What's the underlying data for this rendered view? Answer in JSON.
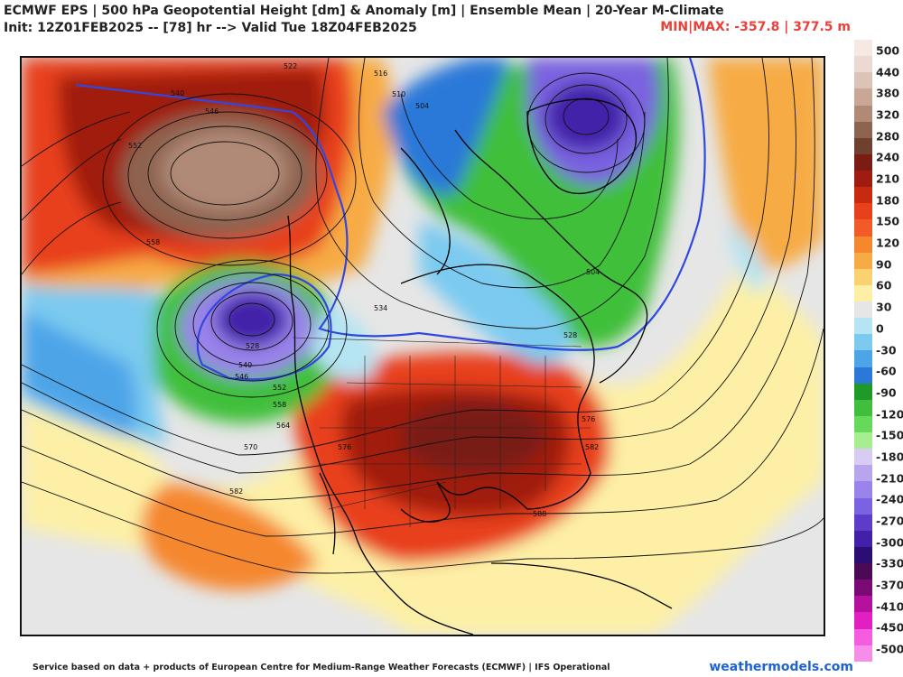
{
  "header": {
    "title_line1": "ECMWF EPS | 500 hPa Geopotential Height [dm] & Anomaly [m] | Ensemble Mean | 20-Year M-Climate",
    "title_line2": "Init: 12Z01FEB2025 -- [78] hr --> Valid Tue 18Z04FEB2025",
    "minmax": "MIN|MAX: -357.8 | 377.5 m"
  },
  "footer": {
    "credit": "Service based on data + products of European Centre for Medium-Range Weather Forecasts (ECMWF) | IFS Operational",
    "brand": "weathermodels.com"
  },
  "legend": {
    "tick_labels": [
      "500",
      "440",
      "380",
      "320",
      "280",
      "240",
      "210",
      "180",
      "150",
      "120",
      "90",
      "60",
      "30",
      "0",
      "-30",
      "-60",
      "-90",
      "-120",
      "-150",
      "-180",
      "-210",
      "-240",
      "-270",
      "-300",
      "-330",
      "-370",
      "-410",
      "-450",
      "-500"
    ],
    "colors": [
      "#f6e9e4",
      "#ecd9d2",
      "#dcc3b8",
      "#c8a796",
      "#b08a77",
      "#8d6450",
      "#6e4030",
      "#7a1c12",
      "#a01c10",
      "#c82a10",
      "#e8401a",
      "#f25a28",
      "#f5872f",
      "#f7ab45",
      "#fbd171",
      "#fdf0a6",
      "#e6e6e6",
      "#b5e4f3",
      "#7ccaf0",
      "#4da5e8",
      "#2a78d8",
      "#1f9a28",
      "#3fbf3b",
      "#66d95a",
      "#a6ee8f",
      "#d9ccf2",
      "#b8a5ee",
      "#9a83ea",
      "#7a62e0",
      "#5c3cc9",
      "#4220a9",
      "#2a0e73",
      "#4a0a55",
      "#7b0a75",
      "#b5109e",
      "#e21fc2",
      "#f55ce0",
      "#f68de8"
    ]
  },
  "map": {
    "height_contour_labels": [
      "522",
      "540",
      "546",
      "552",
      "558",
      "516",
      "510",
      "504",
      "534",
      "528",
      "540",
      "546",
      "552",
      "558",
      "564",
      "570",
      "576",
      "582",
      "588",
      "504",
      "528",
      "576",
      "582"
    ]
  }
}
